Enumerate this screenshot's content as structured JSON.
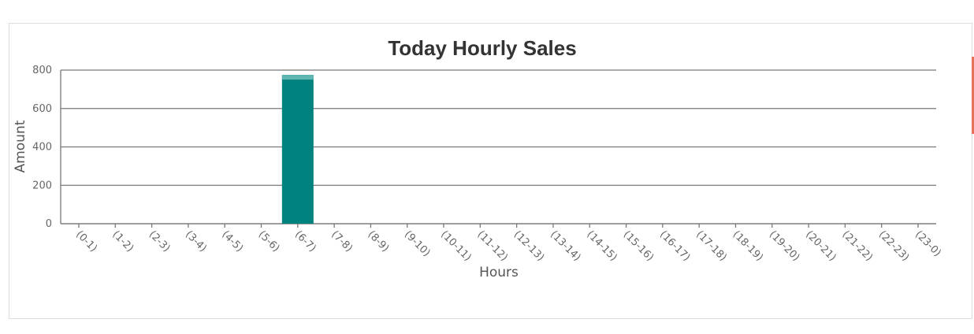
{
  "colors": {
    "bar": "#00827f",
    "bar_highlight": "#5fb5b2",
    "grid": "#777777",
    "accent": "#e8735a"
  },
  "chart_data": {
    "type": "bar",
    "title": "Today Hourly Sales",
    "xlabel": "Hours",
    "ylabel": "Amount",
    "ylim": [
      0,
      800
    ],
    "yticks": [
      0,
      200,
      400,
      600,
      800
    ],
    "grid": true,
    "categories": [
      "(0-1)",
      "(1-2)",
      "(2-3)",
      "(3-4)",
      "(4-5)",
      "(5-6)",
      "(6-7)",
      "(7-8)",
      "(8-9)",
      "(9-10)",
      "(10-11)",
      "(11-12)",
      "(12-13)",
      "(13-14)",
      "(14-15)",
      "(15-16)",
      "(16-17)",
      "(17-18)",
      "(18-19)",
      "(19-20)",
      "(20-21)",
      "(21-22)",
      "(22-23)",
      "(23-0)"
    ],
    "values": [
      0,
      0,
      0,
      0,
      0,
      0,
      775,
      0,
      0,
      0,
      0,
      0,
      0,
      0,
      0,
      0,
      0,
      0,
      0,
      0,
      0,
      0,
      0,
      0
    ]
  }
}
